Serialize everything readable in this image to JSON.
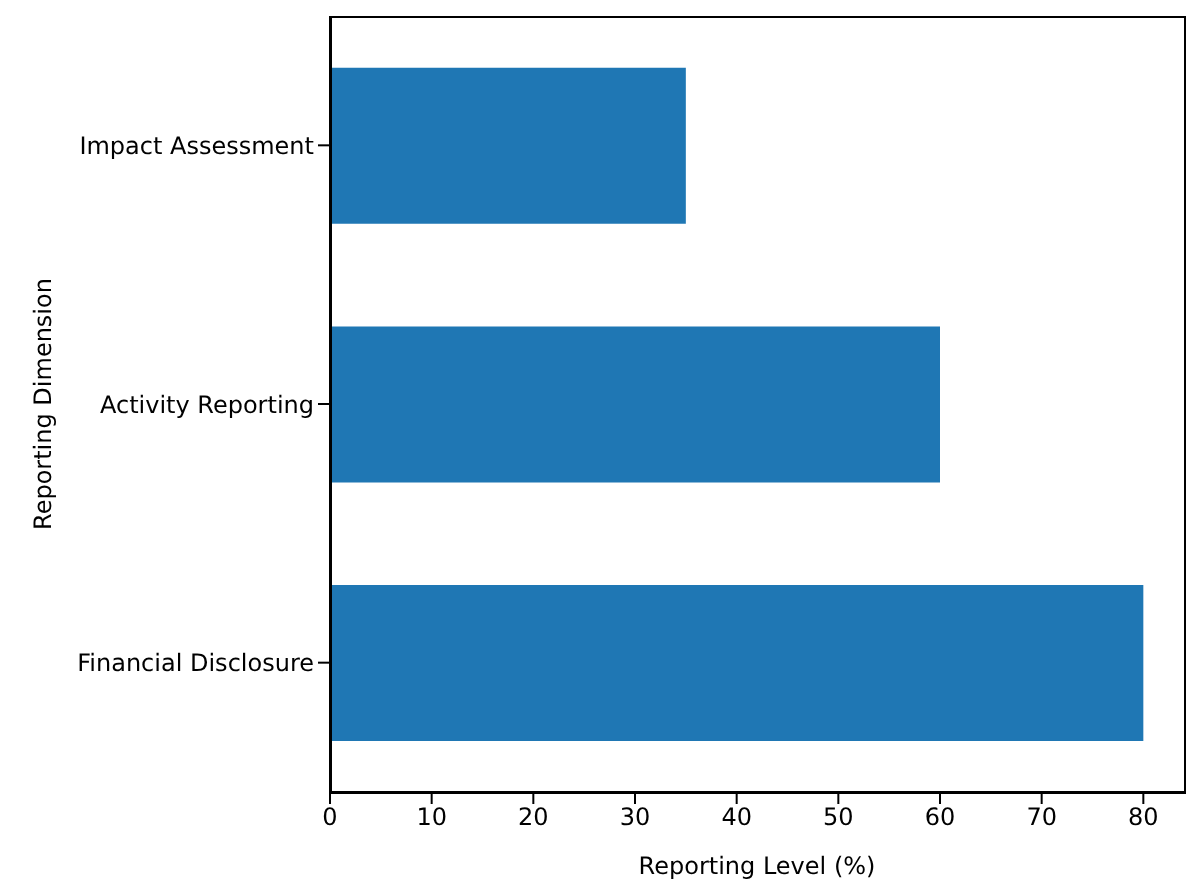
{
  "chart_data": {
    "type": "bar",
    "orientation": "horizontal",
    "xlabel": "Reporting Level (%)",
    "ylabel": "Reporting Dimension",
    "categories": [
      "Impact Assessment",
      "Activity Reporting",
      "Financial Disclosure"
    ],
    "values": [
      35,
      60,
      80
    ],
    "color": "#1f77b4",
    "xlim": [
      0,
      84
    ],
    "xticks": [
      0,
      10,
      20,
      30,
      40,
      50,
      60,
      70,
      80
    ],
    "grid": false
  }
}
